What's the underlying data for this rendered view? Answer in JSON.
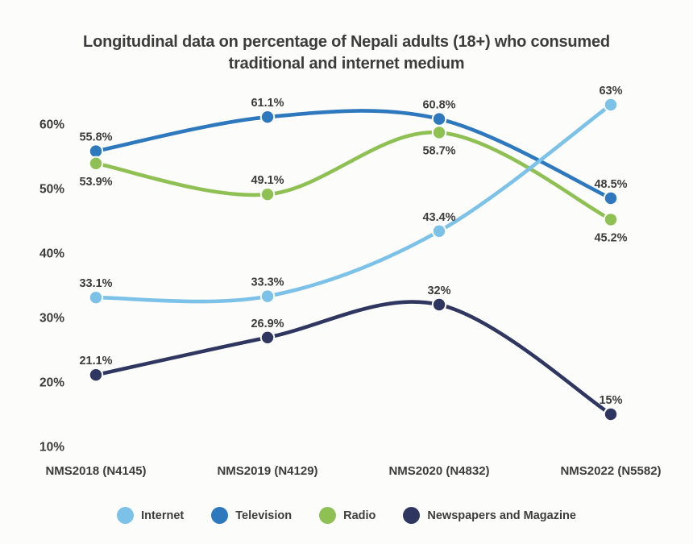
{
  "header": {
    "title_lines": [
      "Longitudinal data on percentage of Nepali adults (18+) who consumed",
      "traditional and internet medium"
    ]
  },
  "colors": {
    "text": "#3c3c3c",
    "background": "#fcfcfa"
  },
  "chart_data": {
    "type": "line",
    "title": "Longitudinal data on percentage of Nepali adults (18+) who consumed traditional and internet medium",
    "xlabel": "",
    "ylabel": "",
    "categories": [
      "NMS2018 (N4145)",
      "NMS2019 (N4129)",
      "NMS2020 (N4832)",
      "NMS2022 (N5582)"
    ],
    "series": [
      {
        "name": "Internet",
        "color": "#7cc1e8",
        "values": [
          33.1,
          33.3,
          43.4,
          63
        ],
        "labels": [
          "33.1%",
          "33.3%",
          "43.4%",
          "63%"
        ],
        "label_positions": [
          "above",
          "above",
          "above",
          "above"
        ]
      },
      {
        "name": "Television",
        "color": "#2e79be",
        "values": [
          55.8,
          61.1,
          60.8,
          48.5
        ],
        "labels": [
          "55.8%",
          "61.1%",
          "60.8%",
          "48.5%"
        ],
        "label_positions": [
          "above",
          "above",
          "above",
          "above"
        ]
      },
      {
        "name": "Radio",
        "color": "#8fc054",
        "values": [
          53.9,
          49.1,
          58.7,
          45.2
        ],
        "labels": [
          "53.9%",
          "49.1%",
          "58.7%",
          "45.2%"
        ],
        "label_positions": [
          "below",
          "above",
          "below",
          "below"
        ]
      },
      {
        "name": "Newspapers and Magazine",
        "color": "#2f3760",
        "values": [
          21.1,
          26.9,
          32,
          15
        ],
        "labels": [
          "21.1%",
          "26.9%",
          "32%",
          "15%"
        ],
        "label_positions": [
          "above",
          "above",
          "above",
          "above"
        ]
      }
    ],
    "y_axis": {
      "tick_labels": [
        "10%",
        "20%",
        "30%",
        "40%",
        "50%",
        "60%"
      ],
      "tick_values": [
        10,
        20,
        30,
        40,
        50,
        60
      ],
      "ylim": [
        10,
        65
      ],
      "unit": "%"
    },
    "grid": false,
    "smoothing": true,
    "legend_position": "bottom-center"
  }
}
